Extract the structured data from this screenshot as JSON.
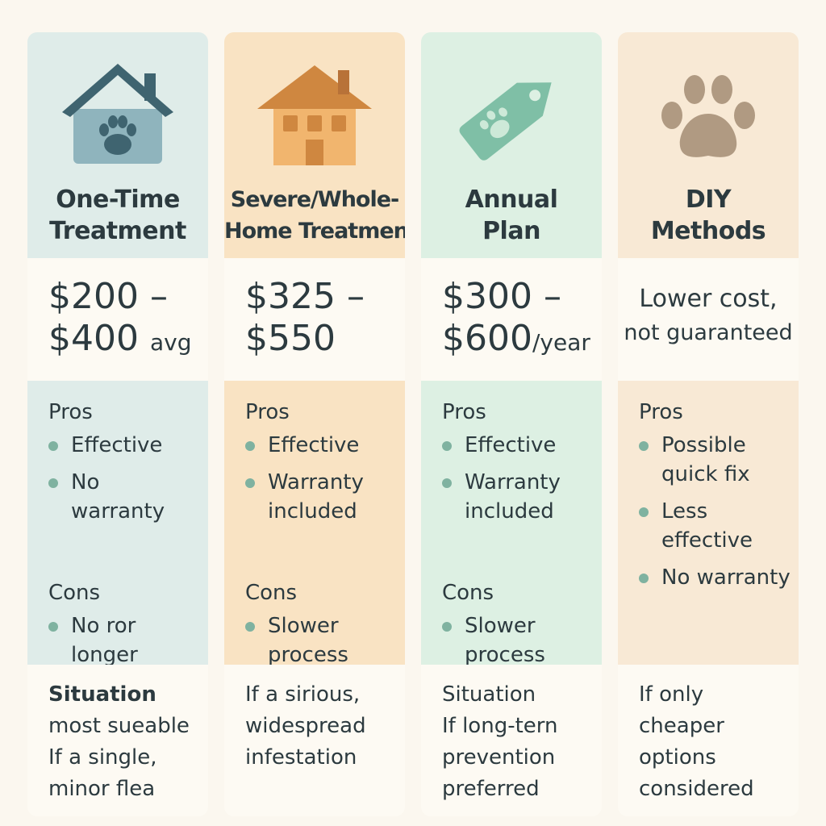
{
  "columns": [
    {
      "title_lines": [
        "One-Time",
        "Treatment"
      ],
      "icon": "house-paw-icon",
      "price_lines": [
        "$200 –",
        "$400"
      ],
      "price_unit": "avg",
      "pros_label": "Pros",
      "pros": [
        "Effective",
        "No\nwarranty"
      ],
      "cons_label": "Cons",
      "cons": [
        "No ror\nlonger"
      ],
      "situation_label": "Situation",
      "situation_lines": [
        "most sueable",
        "If a single,",
        "minor flea"
      ]
    },
    {
      "title_lines": [
        "Severe/Whole-",
        "Home Treatment"
      ],
      "icon": "house-icon",
      "price_lines": [
        "$325 –",
        "$550"
      ],
      "price_unit": "",
      "pros_label": "Pros",
      "pros": [
        "Effective",
        "Warranty\nincluded"
      ],
      "cons_label": "Cons",
      "cons": [
        "Slower\nprocess"
      ],
      "situation_label": "",
      "situation_lines": [
        "If a sirious,",
        "widespread",
        "infestation"
      ]
    },
    {
      "title_lines": [
        "Annual",
        "Plan"
      ],
      "icon": "price-tag-icon",
      "price_lines": [
        "$300 –",
        "$600"
      ],
      "price_unit": "/year",
      "pros_label": "Pros",
      "pros": [
        "Effective",
        "Warranty\nincluded"
      ],
      "cons_label": "Cons",
      "cons": [
        "Slower\nprocess"
      ],
      "situation_label": "Situation",
      "situation_lines": [
        "If long-tern",
        "prevention",
        "preferred"
      ]
    },
    {
      "title_lines": [
        "DIY",
        "Methods"
      ],
      "icon": "paw-icon",
      "price_note_lines": [
        "Lower cost,",
        "not guaranteed"
      ],
      "pros_label": "Pros",
      "pros": [
        "Possible\nquick fix",
        "Less\neffective",
        "No warranty"
      ],
      "situation_label": "",
      "situation_lines": [
        "If only",
        "cheaper",
        "options",
        "considered"
      ]
    }
  ],
  "colors": {
    "dark_text": "#2c3a3f",
    "bullet": "#7fb2a0",
    "col1_bg": "#dfece9",
    "col2_bg": "#f9e3c3",
    "col3_bg": "#ddf0e3",
    "col4_bg": "#f8e9d5"
  }
}
